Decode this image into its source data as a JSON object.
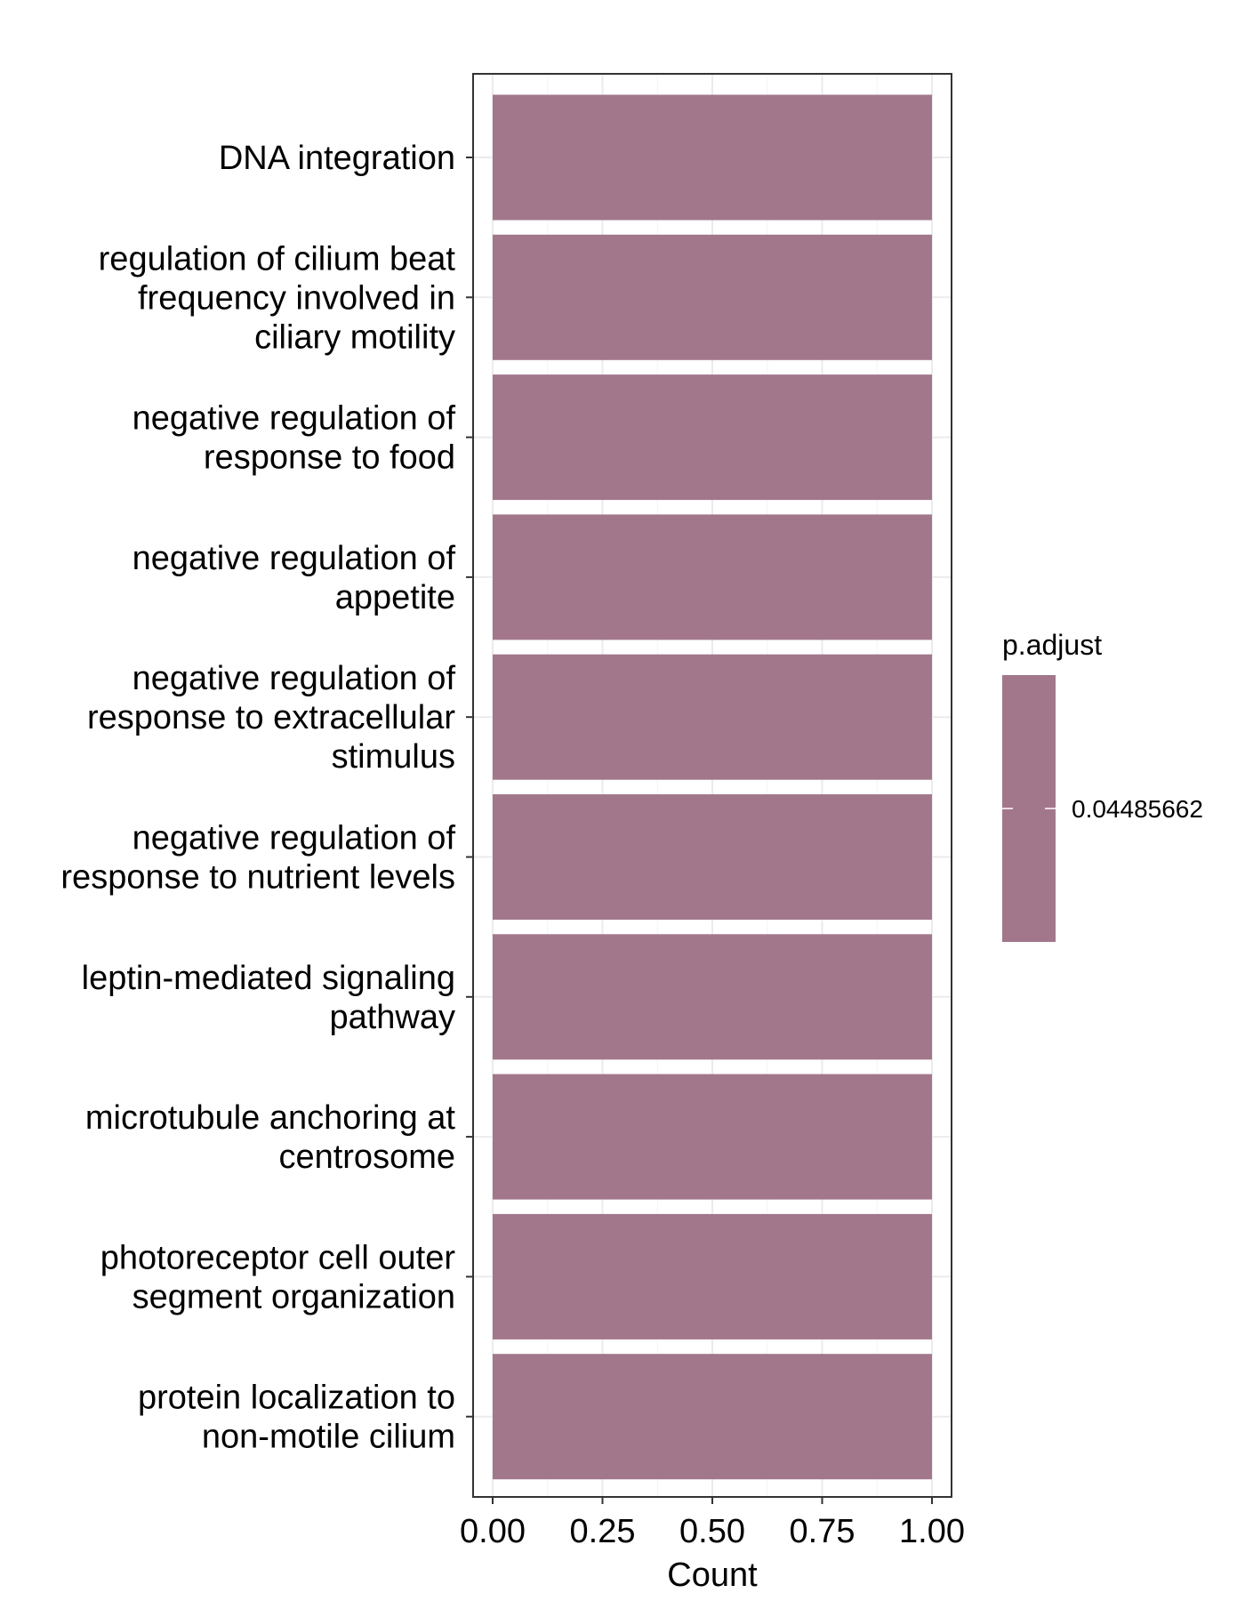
{
  "chart_data": {
    "type": "bar",
    "orientation": "horizontal",
    "categories": [
      [
        "DNA integration"
      ],
      [
        "regulation of cilium beat",
        "frequency involved in",
        "ciliary motility"
      ],
      [
        "negative regulation of",
        "response to food"
      ],
      [
        "negative regulation of",
        "appetite"
      ],
      [
        "negative regulation of",
        "response to extracellular",
        "stimulus"
      ],
      [
        "negative regulation of",
        "response to nutrient levels"
      ],
      [
        "leptin-mediated signaling",
        "pathway"
      ],
      [
        "microtubule anchoring at",
        "centrosome"
      ],
      [
        "photoreceptor cell outer",
        "segment organization"
      ],
      [
        "protein localization to",
        "non-motile cilium"
      ]
    ],
    "values": [
      1,
      1,
      1,
      1,
      1,
      1,
      1,
      1,
      1,
      1
    ],
    "xlabel": "Count",
    "ylabel": "",
    "xlim": [
      0,
      1
    ],
    "xticks": [
      0.0,
      0.25,
      0.5,
      0.75,
      1.0
    ],
    "xtick_labels": [
      "0.00",
      "0.25",
      "0.50",
      "0.75",
      "1.00"
    ],
    "bar_color": "#a2778c",
    "grid": true,
    "legend": {
      "title": "p.adjust",
      "type": "colorbar",
      "position": "right",
      "labels": [
        "0.04485662"
      ],
      "color": "#a2778c"
    }
  }
}
